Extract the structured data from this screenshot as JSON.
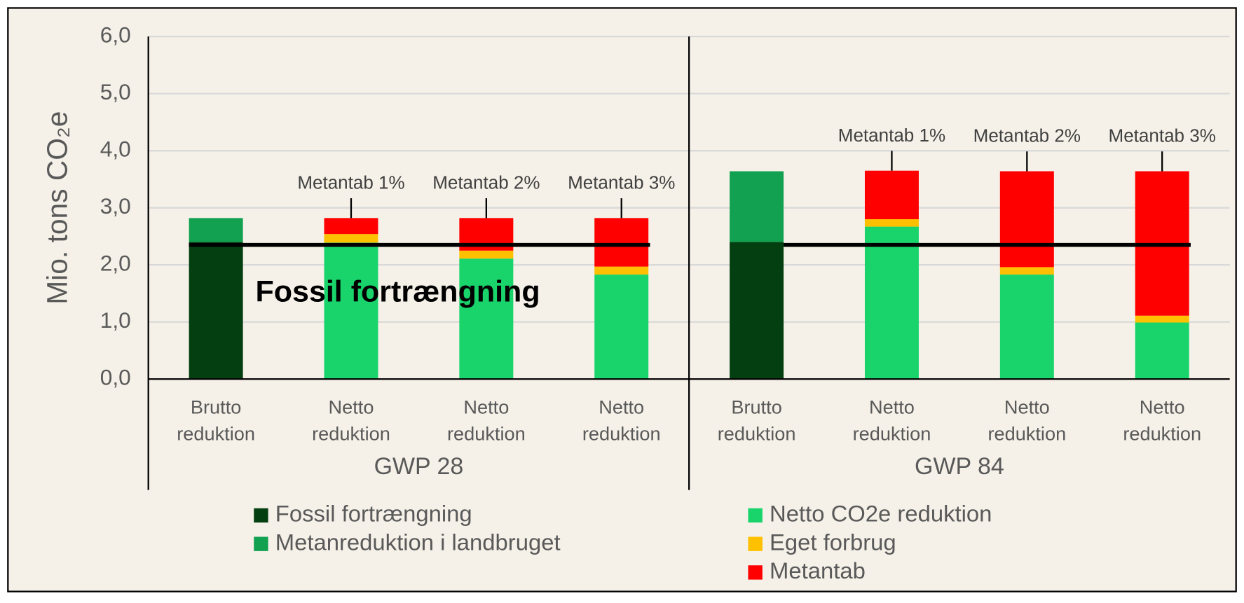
{
  "chart_data": {
    "type": "stacked_bar",
    "y_label": "Mio. tons CO₂e",
    "categories": [
      [
        "Brutto",
        "reduktion"
      ],
      [
        "Netto",
        "reduktion"
      ],
      [
        "Netto",
        "reduktion"
      ],
      [
        "Netto",
        "reduktion"
      ],
      [
        "Brutto",
        "reduktion"
      ],
      [
        "Netto",
        "reduktion"
      ],
      [
        "Netto",
        "reduktion"
      ],
      [
        "Netto",
        "reduktion"
      ]
    ],
    "group_labels": [
      "GWP 28",
      "GWP 84"
    ],
    "series": [
      {
        "name": "Fossil fortrængning",
        "color": "#033f10",
        "values": [
          2.4,
          null,
          null,
          null,
          2.4,
          null,
          null,
          null
        ]
      },
      {
        "name": "Metanreduktion i landbruget",
        "color": "#12a150",
        "values": [
          0.42,
          null,
          null,
          null,
          1.24,
          null,
          null,
          null
        ]
      },
      {
        "name": "Netto CO2e reduktion",
        "color": "#19d46b",
        "values": [
          null,
          2.39,
          2.11,
          1.83,
          null,
          2.67,
          1.83,
          0.99
        ]
      },
      {
        "name": "Eget forbrug",
        "color": "#ffc000",
        "values": [
          null,
          0.15,
          0.14,
          0.14,
          null,
          0.13,
          0.13,
          0.12
        ]
      },
      {
        "name": "Metantab",
        "color": "#ff0000",
        "values": [
          null,
          0.28,
          0.57,
          0.85,
          null,
          0.85,
          1.68,
          2.53
        ]
      }
    ],
    "bar_annotations": [
      null,
      "Metantab 1%",
      "Metantab 2%",
      "Metantab 3%",
      null,
      "Metantab 1%",
      "Metantab 2%",
      "Metantab 3%"
    ],
    "reference": {
      "label": "Fossil fortrængning",
      "value": 2.35
    },
    "ylim": [
      0,
      6
    ],
    "yticks": [
      {
        "value": 0,
        "label": "0,0"
      },
      {
        "value": 1,
        "label": "1,0"
      },
      {
        "value": 2,
        "label": "2,0"
      },
      {
        "value": 3,
        "label": "3,0"
      },
      {
        "value": 4,
        "label": "4,0"
      },
      {
        "value": 5,
        "label": "5,0"
      },
      {
        "value": 6,
        "label": "6,0"
      }
    ],
    "grid": true
  }
}
